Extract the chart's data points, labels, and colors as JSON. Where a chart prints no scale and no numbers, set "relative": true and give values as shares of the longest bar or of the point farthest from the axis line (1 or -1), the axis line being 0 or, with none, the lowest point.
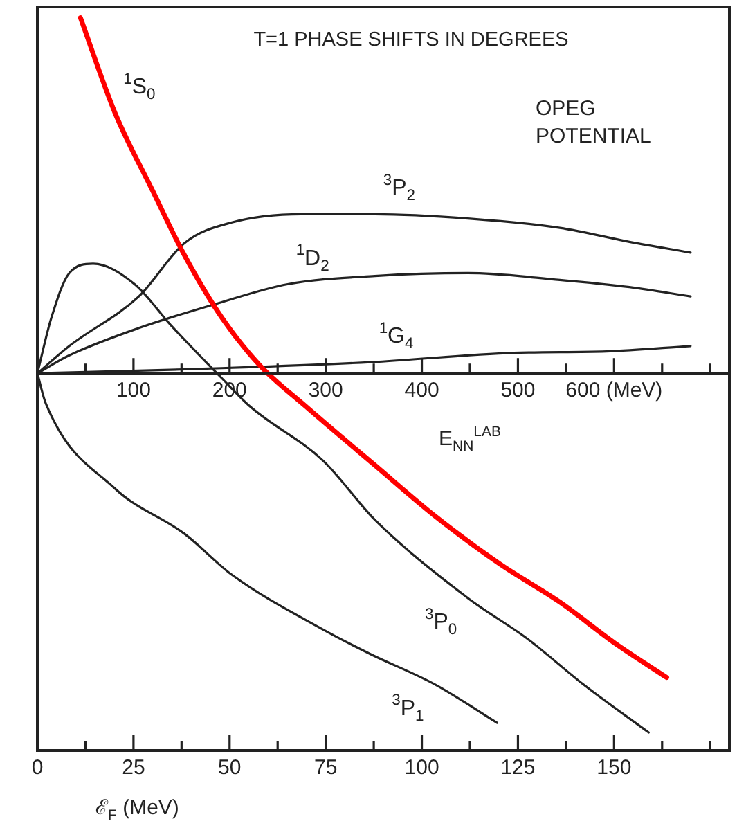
{
  "chart_data": {
    "type": "line",
    "title": "T=1 PHASE SHIFTS IN DEGREES",
    "xlabel": "ℰ$_{F}$ (MeV)",
    "x2label": "E$_{NN}$$^{LAB}$",
    "relative": true,
    "marker": "none",
    "line_style": "solid",
    "xlim": [
      0,
      180
    ],
    "xticks": [
      0,
      {
        "value": 12.5,
        "label": null
      },
      25,
      {
        "value": 37.5,
        "label": null
      },
      50,
      {
        "value": 62.5,
        "label": null
      },
      75,
      {
        "value": 87.5,
        "label": null
      },
      100,
      {
        "value": 112.5,
        "label": null
      },
      125,
      {
        "value": 137.5,
        "label": null
      },
      150,
      {
        "value": 162.5,
        "label": null
      },
      {
        "value": 175,
        "label": null
      }
    ],
    "x2lim": [
      0,
      720
    ],
    "x2ticks": [
      {
        "value": 50,
        "label": null
      },
      100,
      {
        "value": 150,
        "label": null
      },
      200,
      {
        "value": 250,
        "label": null
      },
      300,
      {
        "value": 350,
        "label": null
      },
      400,
      {
        "value": 450,
        "label": null
      },
      500,
      {
        "value": 550,
        "label": null
      },
      {
        "value": 600,
        "label": "600 (MeV)"
      },
      {
        "value": 650,
        "label": null
      },
      {
        "value": 700,
        "label": null
      }
    ],
    "series": [
      {
        "color": "#ff0000",
        "x": [
          11.2,
          20.2,
          30.0,
          38.3,
          48.1,
          57.8,
          69.8,
          87.8,
          103.4,
          120.3,
          135.9,
          150.3,
          163.7
        ],
        "values": [
          0.99,
          0.725,
          0.508,
          0.328,
          0.153,
          0.023,
          -0.092,
          -0.256,
          -0.397,
          -0.531,
          -0.637,
          -0.752,
          -0.847
        ]
      },
      {
        "color": "#222222",
        "x": [
          0,
          8.3,
          26.4,
          38.3,
          50.6,
          68.7,
          87.8,
          112,
          135.9,
          154,
          169.9
        ],
        "values": [
          0,
          0.076,
          0.214,
          0.363,
          0.42,
          0.443,
          0.443,
          0.431,
          0.405,
          0.366,
          0.336
        ]
      },
      {
        "color": "#222222",
        "x": [
          0,
          8.3,
          26.4,
          47,
          65.1,
          87.8,
          112,
          135.9,
          154,
          169.9
        ],
        "values": [
          0,
          0.05,
          0.126,
          0.195,
          0.248,
          0.271,
          0.279,
          0.26,
          0.24,
          0.214
        ]
      },
      {
        "color": "#222222",
        "x": [
          0,
          38.3,
          86.7,
          124,
          148,
          169.9
        ],
        "values": [
          0,
          0.011,
          0.031,
          0.057,
          0.061,
          0.076
        ]
      },
      {
        "color": "#222222",
        "x": [
          0,
          3.6,
          8.3,
          14.5,
          25.3,
          34.7,
          48.1,
          55.3,
          74.4,
          87.8,
          112,
          127.6,
          142,
          159
        ],
        "values": [
          0,
          0.153,
          0.279,
          0.305,
          0.248,
          0.134,
          -0.015,
          -0.092,
          -0.244,
          -0.408,
          -0.626,
          -0.74,
          -0.866,
          -1.0
        ]
      },
      {
        "color": "#222222",
        "x": [
          0,
          2.2,
          20.2,
          38.3,
          50.6,
          74.4,
          86.7,
          103.4,
          119.6
        ],
        "values": [
          0,
          -0.084,
          -0.321,
          -0.447,
          -0.561,
          -0.714,
          -0.782,
          -0.866,
          -0.973
        ]
      }
    ],
    "annotations": [
      "OPEG POTENTIAL",
      {
        "text": "$^{1}$S$_{0}$",
        "x": 20.2,
        "y": 0.725
      },
      {
        "text": "$^{3}$P$_{2}$",
        "x": 87.8,
        "y": 0.443
      },
      {
        "text": "$^{1}$D$_{2}$",
        "x": 65.1,
        "y": 0.248
      },
      {
        "text": "$^{1}$G$_{4}$",
        "x": 86.7,
        "y": 0.031
      },
      {
        "text": "$^{3}$P$_{0}$",
        "x": 112,
        "y": -0.626
      },
      {
        "text": "$^{3}$P$_{1}$",
        "x": 103.4,
        "y": -0.866
      }
    ]
  }
}
